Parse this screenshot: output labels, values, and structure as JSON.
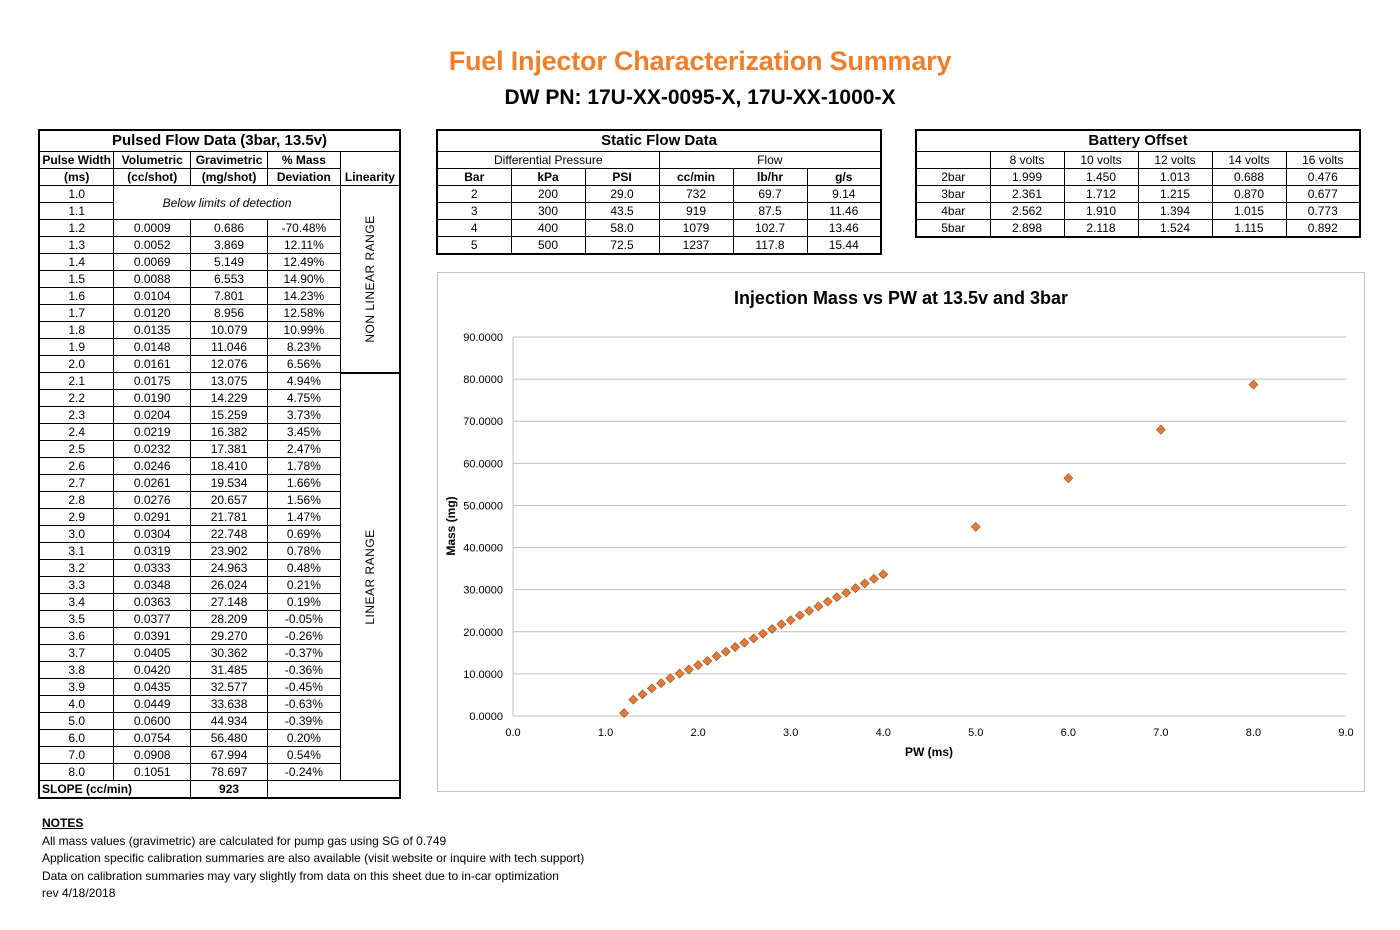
{
  "header": {
    "title": "Fuel Injector Characterization Summary",
    "subtitle": "DW PN: 17U-XX-0095-X, 17U-XX-1000-X"
  },
  "pulsed": {
    "title": "Pulsed Flow Data (3bar, 13.5v)",
    "col_pw": [
      "Pulse Width",
      "(ms)"
    ],
    "col_vol": [
      "Volumetric",
      "(cc/shot)"
    ],
    "col_grav": [
      "Gravimetric",
      "(mg/shot)"
    ],
    "col_dev": [
      "% Mass",
      "Deviation"
    ],
    "col_lin": "Linearity",
    "below_limits": "Below limits of detection",
    "non_linear_label": "NON LINEAR RANGE",
    "linear_label": "LINEAR RANGE",
    "rows": [
      [
        "1.0",
        "",
        "",
        ""
      ],
      [
        "1.1",
        "",
        "",
        ""
      ],
      [
        "1.2",
        "0.0009",
        "0.686",
        "-70.48%"
      ],
      [
        "1.3",
        "0.0052",
        "3.869",
        "12.11%"
      ],
      [
        "1.4",
        "0.0069",
        "5.149",
        "12.49%"
      ],
      [
        "1.5",
        "0.0088",
        "6.553",
        "14.90%"
      ],
      [
        "1.6",
        "0.0104",
        "7.801",
        "14.23%"
      ],
      [
        "1.7",
        "0.0120",
        "8.956",
        "12.58%"
      ],
      [
        "1.8",
        "0.0135",
        "10.079",
        "10.99%"
      ],
      [
        "1.9",
        "0.0148",
        "11.046",
        "8.23%"
      ],
      [
        "2.0",
        "0.0161",
        "12.076",
        "6.56%"
      ],
      [
        "2.1",
        "0.0175",
        "13.075",
        "4.94%"
      ],
      [
        "2.2",
        "0.0190",
        "14.229",
        "4.75%"
      ],
      [
        "2.3",
        "0.0204",
        "15.259",
        "3.73%"
      ],
      [
        "2.4",
        "0.0219",
        "16.382",
        "3.45%"
      ],
      [
        "2.5",
        "0.0232",
        "17.381",
        "2.47%"
      ],
      [
        "2.6",
        "0.0246",
        "18.410",
        "1.78%"
      ],
      [
        "2.7",
        "0.0261",
        "19.534",
        "1.66%"
      ],
      [
        "2.8",
        "0.0276",
        "20.657",
        "1.56%"
      ],
      [
        "2.9",
        "0.0291",
        "21.781",
        "1.47%"
      ],
      [
        "3.0",
        "0.0304",
        "22.748",
        "0.69%"
      ],
      [
        "3.1",
        "0.0319",
        "23.902",
        "0.78%"
      ],
      [
        "3.2",
        "0.0333",
        "24.963",
        "0.48%"
      ],
      [
        "3.3",
        "0.0348",
        "26.024",
        "0.21%"
      ],
      [
        "3.4",
        "0.0363",
        "27.148",
        "0.19%"
      ],
      [
        "3.5",
        "0.0377",
        "28.209",
        "-0.05%"
      ],
      [
        "3.6",
        "0.0391",
        "29.270",
        "-0.26%"
      ],
      [
        "3.7",
        "0.0405",
        "30.362",
        "-0.37%"
      ],
      [
        "3.8",
        "0.0420",
        "31.485",
        "-0.36%"
      ],
      [
        "3.9",
        "0.0435",
        "32.577",
        "-0.45%"
      ],
      [
        "4.0",
        "0.0449",
        "33.638",
        "-0.63%"
      ],
      [
        "5.0",
        "0.0600",
        "44.934",
        "-0.39%"
      ],
      [
        "6.0",
        "0.0754",
        "56.480",
        "0.20%"
      ],
      [
        "7.0",
        "0.0908",
        "67.994",
        "0.54%"
      ],
      [
        "8.0",
        "0.1051",
        "78.697",
        "-0.24%"
      ]
    ],
    "slope_label": "SLOPE (cc/min)",
    "slope_value": "923"
  },
  "static": {
    "title": "Static Flow Data",
    "group_dp": "Differential Pressure",
    "group_flow": "Flow",
    "cols": [
      "Bar",
      "kPa",
      "PSI",
      "cc/min",
      "lb/hr",
      "g/s"
    ],
    "rows": [
      [
        "2",
        "200",
        "29.0",
        "732",
        "69.7",
        "9.14"
      ],
      [
        "3",
        "300",
        "43.5",
        "919",
        "87.5",
        "11.46"
      ],
      [
        "4",
        "400",
        "58.0",
        "1079",
        "102.7",
        "13.46"
      ],
      [
        "5",
        "500",
        "72.5",
        "1237",
        "117.8",
        "15.44"
      ]
    ]
  },
  "battery": {
    "title": "Battery Offset",
    "cols": [
      "",
      "8 volts",
      "10 volts",
      "12 volts",
      "14 volts",
      "16 volts"
    ],
    "rows": [
      [
        "2bar",
        "1.999",
        "1.450",
        "1.013",
        "0.688",
        "0.476"
      ],
      [
        "3bar",
        "2.361",
        "1.712",
        "1.215",
        "0.870",
        "0.677"
      ],
      [
        "4bar",
        "2.562",
        "1.910",
        "1.394",
        "1.015",
        "0.773"
      ],
      [
        "5bar",
        "2.898",
        "2.118",
        "1.524",
        "1.115",
        "0.892"
      ]
    ]
  },
  "chart_data": {
    "type": "scatter",
    "title": "Injection Mass vs PW at 13.5v and 3bar",
    "xlabel": "PW (ms)",
    "ylabel": "Mass (mg)",
    "xlim": [
      0,
      9
    ],
    "ylim": [
      0,
      90
    ],
    "x_ticks": [
      "0.0",
      "1.0",
      "2.0",
      "3.0",
      "4.0",
      "5.0",
      "6.0",
      "7.0",
      "8.0",
      "9.0"
    ],
    "y_ticks": [
      "0.0000",
      "10.0000",
      "20.0000",
      "30.0000",
      "40.0000",
      "50.0000",
      "60.0000",
      "70.0000",
      "80.0000",
      "90.0000"
    ],
    "grid": "horizontal",
    "marker_color": "#e07b39",
    "marker_edge": "#9a4a1a",
    "x": [
      1.2,
      1.3,
      1.4,
      1.5,
      1.6,
      1.7,
      1.8,
      1.9,
      2.0,
      2.1,
      2.2,
      2.3,
      2.4,
      2.5,
      2.6,
      2.7,
      2.8,
      2.9,
      3.0,
      3.1,
      3.2,
      3.3,
      3.4,
      3.5,
      3.6,
      3.7,
      3.8,
      3.9,
      4.0,
      5.0,
      6.0,
      7.0,
      8.0
    ],
    "y": [
      0.686,
      3.869,
      5.149,
      6.553,
      7.801,
      8.956,
      10.079,
      11.046,
      12.076,
      13.075,
      14.229,
      15.259,
      16.382,
      17.381,
      18.41,
      19.534,
      20.657,
      21.781,
      22.748,
      23.902,
      24.963,
      26.024,
      27.148,
      28.209,
      29.27,
      30.362,
      31.485,
      32.577,
      33.638,
      44.934,
      56.48,
      67.994,
      78.697
    ]
  },
  "notes": {
    "heading": "NOTES",
    "lines": [
      "All mass values (gravimetric) are calculated for pump gas using SG of 0.749",
      "Application specific calibration summaries are also available (visit website or inquire with tech support)",
      "Data on calibration summaries may vary slightly from data on this sheet due to in-car optimization",
      "rev 4/18/2018"
    ]
  }
}
